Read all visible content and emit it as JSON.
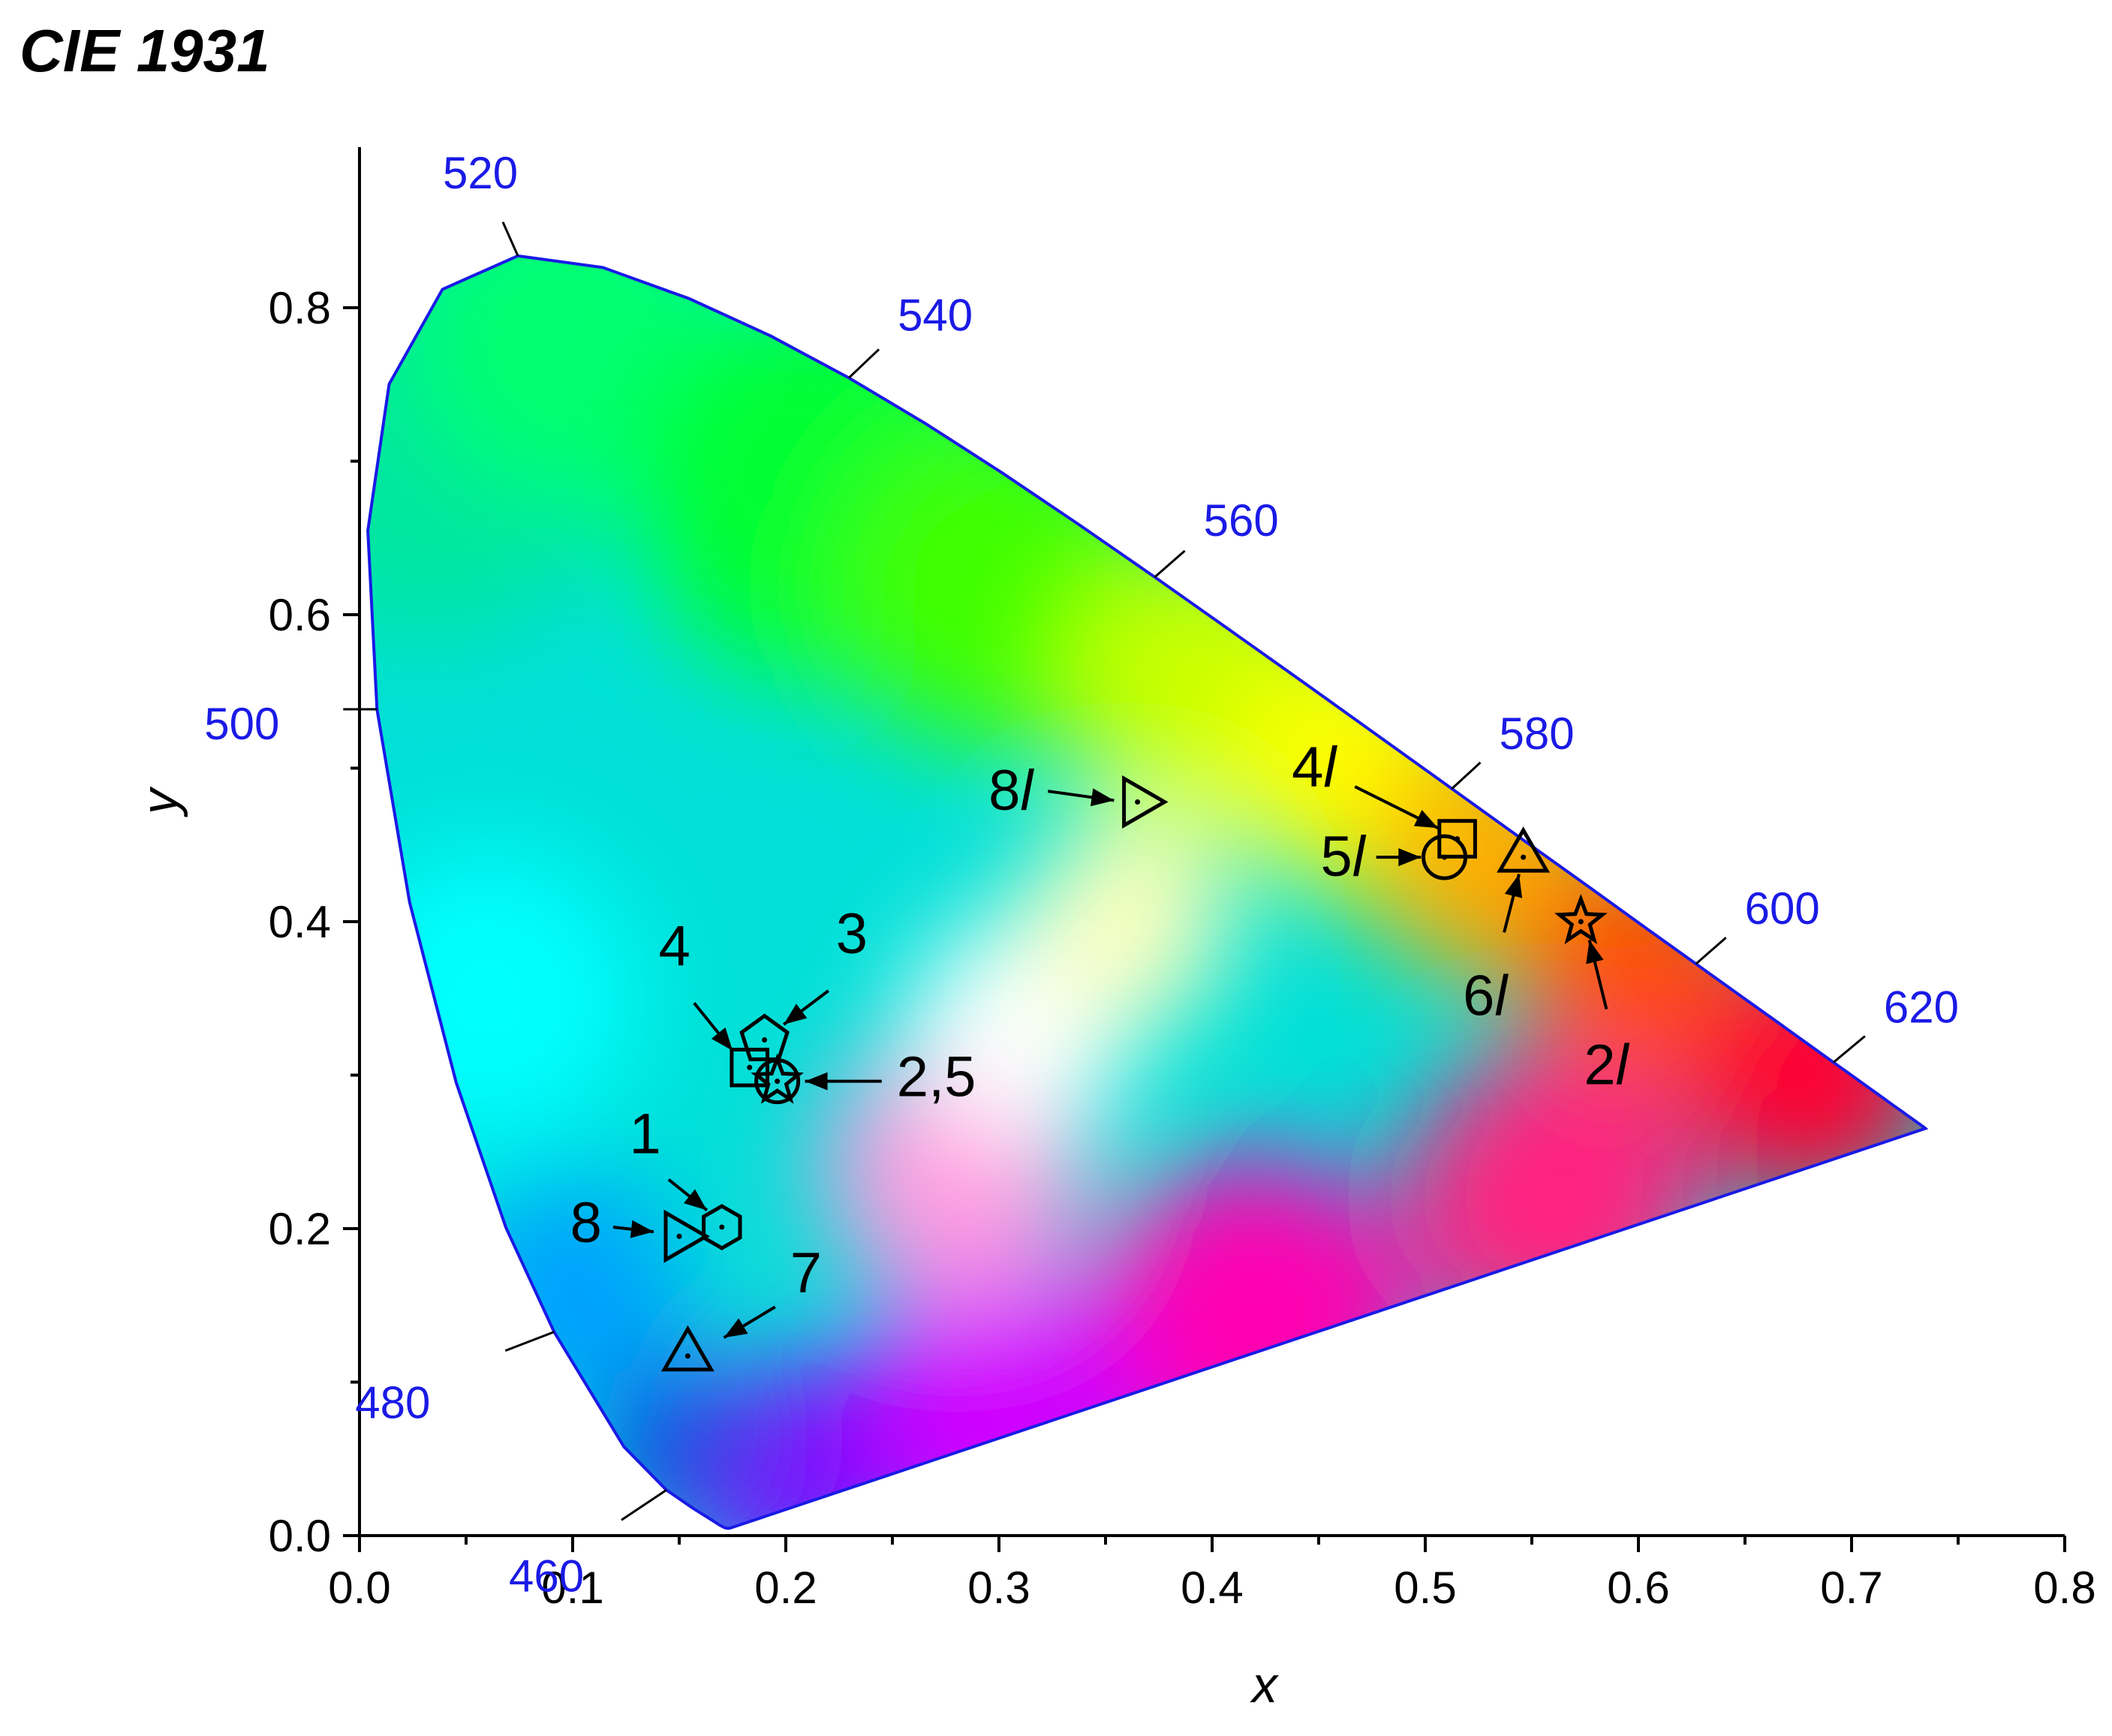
{
  "chart_data": {
    "type": "scatter",
    "title": "CIE 1931",
    "xlabel": "x",
    "ylabel": "y",
    "xlim": [
      0.0,
      0.8
    ],
    "ylim": [
      0.0,
      0.9
    ],
    "x_ticks": [
      "0.0",
      "0.1",
      "0.2",
      "0.3",
      "0.4",
      "0.5",
      "0.6",
      "0.7",
      "0.8"
    ],
    "y_ticks": [
      "0.0",
      "0.2",
      "0.4",
      "0.6",
      "0.8"
    ],
    "locus_color": "#1a1ae6",
    "spectral_locus": [
      [
        0.1741,
        0.005
      ],
      [
        0.174,
        0.005
      ],
      [
        0.1738,
        0.0049
      ],
      [
        0.1736,
        0.0049
      ],
      [
        0.1733,
        0.0048
      ],
      [
        0.1726,
        0.0048
      ],
      [
        0.1714,
        0.0051
      ],
      [
        0.1689,
        0.0069
      ],
      [
        0.1644,
        0.0109
      ],
      [
        0.1566,
        0.0177
      ],
      [
        0.144,
        0.0297
      ],
      [
        0.1241,
        0.0578
      ],
      [
        0.0913,
        0.1327
      ],
      [
        0.0687,
        0.2007
      ],
      [
        0.0454,
        0.295
      ],
      [
        0.0235,
        0.4127
      ],
      [
        0.0082,
        0.5384
      ],
      [
        0.0039,
        0.6548
      ],
      [
        0.0139,
        0.7502
      ],
      [
        0.0389,
        0.812
      ],
      [
        0.0743,
        0.8338
      ],
      [
        0.1142,
        0.8262
      ],
      [
        0.1547,
        0.8059
      ],
      [
        0.1929,
        0.7816
      ],
      [
        0.2296,
        0.7543
      ],
      [
        0.2658,
        0.7243
      ],
      [
        0.3016,
        0.6923
      ],
      [
        0.3373,
        0.6589
      ],
      [
        0.3731,
        0.6245
      ],
      [
        0.4087,
        0.5896
      ],
      [
        0.4441,
        0.5547
      ],
      [
        0.4788,
        0.5202
      ],
      [
        0.5125,
        0.4866
      ],
      [
        0.5448,
        0.4544
      ],
      [
        0.5752,
        0.4242
      ],
      [
        0.6029,
        0.3965
      ],
      [
        0.627,
        0.3725
      ],
      [
        0.6482,
        0.3514
      ],
      [
        0.6658,
        0.334
      ],
      [
        0.6801,
        0.3197
      ],
      [
        0.6915,
        0.3083
      ],
      [
        0.7006,
        0.2993
      ],
      [
        0.7079,
        0.292
      ],
      [
        0.714,
        0.2859
      ],
      [
        0.719,
        0.2809
      ],
      [
        0.723,
        0.277
      ],
      [
        0.726,
        0.274
      ],
      [
        0.7283,
        0.2717
      ],
      [
        0.73,
        0.27
      ],
      [
        0.7311,
        0.2689
      ],
      [
        0.732,
        0.268
      ],
      [
        0.7327,
        0.2673
      ],
      [
        0.7334,
        0.2666
      ],
      [
        0.734,
        0.266
      ],
      [
        0.7344,
        0.2656
      ],
      [
        0.7346,
        0.2654
      ],
      [
        0.7347,
        0.2653
      ]
    ],
    "wavelength_labels": [
      {
        "nm": "460",
        "x": 0.144,
        "y": 0.0297
      },
      {
        "nm": "480",
        "x": 0.0913,
        "y": 0.1327
      },
      {
        "nm": "500",
        "x": 0.0082,
        "y": 0.5384
      },
      {
        "nm": "520",
        "x": 0.0743,
        "y": 0.8338
      },
      {
        "nm": "540",
        "x": 0.2296,
        "y": 0.7543
      },
      {
        "nm": "560",
        "x": 0.3731,
        "y": 0.6245
      },
      {
        "nm": "580",
        "x": 0.5125,
        "y": 0.4866
      },
      {
        "nm": "600",
        "x": 0.627,
        "y": 0.3725
      },
      {
        "nm": "620",
        "x": 0.6915,
        "y": 0.3083
      }
    ],
    "points": [
      {
        "label": "1",
        "marker": "hexagon",
        "x": 0.17,
        "y": 0.201
      },
      {
        "label": "2",
        "marker": "circle",
        "x": 0.196,
        "y": 0.296
      },
      {
        "label": "3",
        "marker": "pentagon",
        "x": 0.19,
        "y": 0.323
      },
      {
        "label": "4",
        "marker": "square",
        "x": 0.183,
        "y": 0.305
      },
      {
        "label": "5",
        "marker": "star",
        "x": 0.196,
        "y": 0.296
      },
      {
        "label": "7",
        "marker": "triangle-up",
        "x": 0.154,
        "y": 0.117
      },
      {
        "label": "8",
        "marker": "triangle-right",
        "x": 0.15,
        "y": 0.195
      },
      {
        "label": "2l",
        "marker": "star",
        "x": 0.573,
        "y": 0.4
      },
      {
        "label": "4l",
        "marker": "square",
        "x": 0.515,
        "y": 0.454
      },
      {
        "label": "5l",
        "marker": "circle",
        "x": 0.509,
        "y": 0.442
      },
      {
        "label": "6l",
        "marker": "triangle-up",
        "x": 0.546,
        "y": 0.442
      },
      {
        "label": "8l",
        "marker": "triangle-right",
        "x": 0.365,
        "y": 0.478
      }
    ],
    "annotations": [
      {
        "text": "1",
        "from": [
          0.145,
          0.232
        ],
        "to": [
          0.163,
          0.212
        ]
      },
      {
        "text": "2,5",
        "from": [
          0.245,
          0.296
        ],
        "to": [
          0.209,
          0.296
        ]
      },
      {
        "text": "3",
        "from": [
          0.22,
          0.355
        ],
        "to": [
          0.199,
          0.333
        ]
      },
      {
        "text": "4",
        "from": [
          0.157,
          0.347
        ],
        "to": [
          0.175,
          0.316
        ]
      },
      {
        "text": "7",
        "from": [
          0.195,
          0.149
        ],
        "to": [
          0.171,
          0.129
        ]
      },
      {
        "text": "8",
        "from": [
          0.119,
          0.201
        ],
        "to": [
          0.138,
          0.198
        ]
      },
      {
        "text": "2l",
        "from": [
          0.585,
          0.343
        ],
        "to": [
          0.577,
          0.388
        ]
      },
      {
        "text": "4l",
        "from": [
          0.467,
          0.488
        ],
        "to": [
          0.506,
          0.461
        ]
      },
      {
        "text": "5l",
        "from": [
          0.477,
          0.442
        ],
        "to": [
          0.498,
          0.442
        ]
      },
      {
        "text": "6l",
        "from": [
          0.537,
          0.393
        ],
        "to": [
          0.544,
          0.431
        ]
      },
      {
        "text": "8l",
        "from": [
          0.323,
          0.485
        ],
        "to": [
          0.354,
          0.479
        ]
      }
    ]
  }
}
